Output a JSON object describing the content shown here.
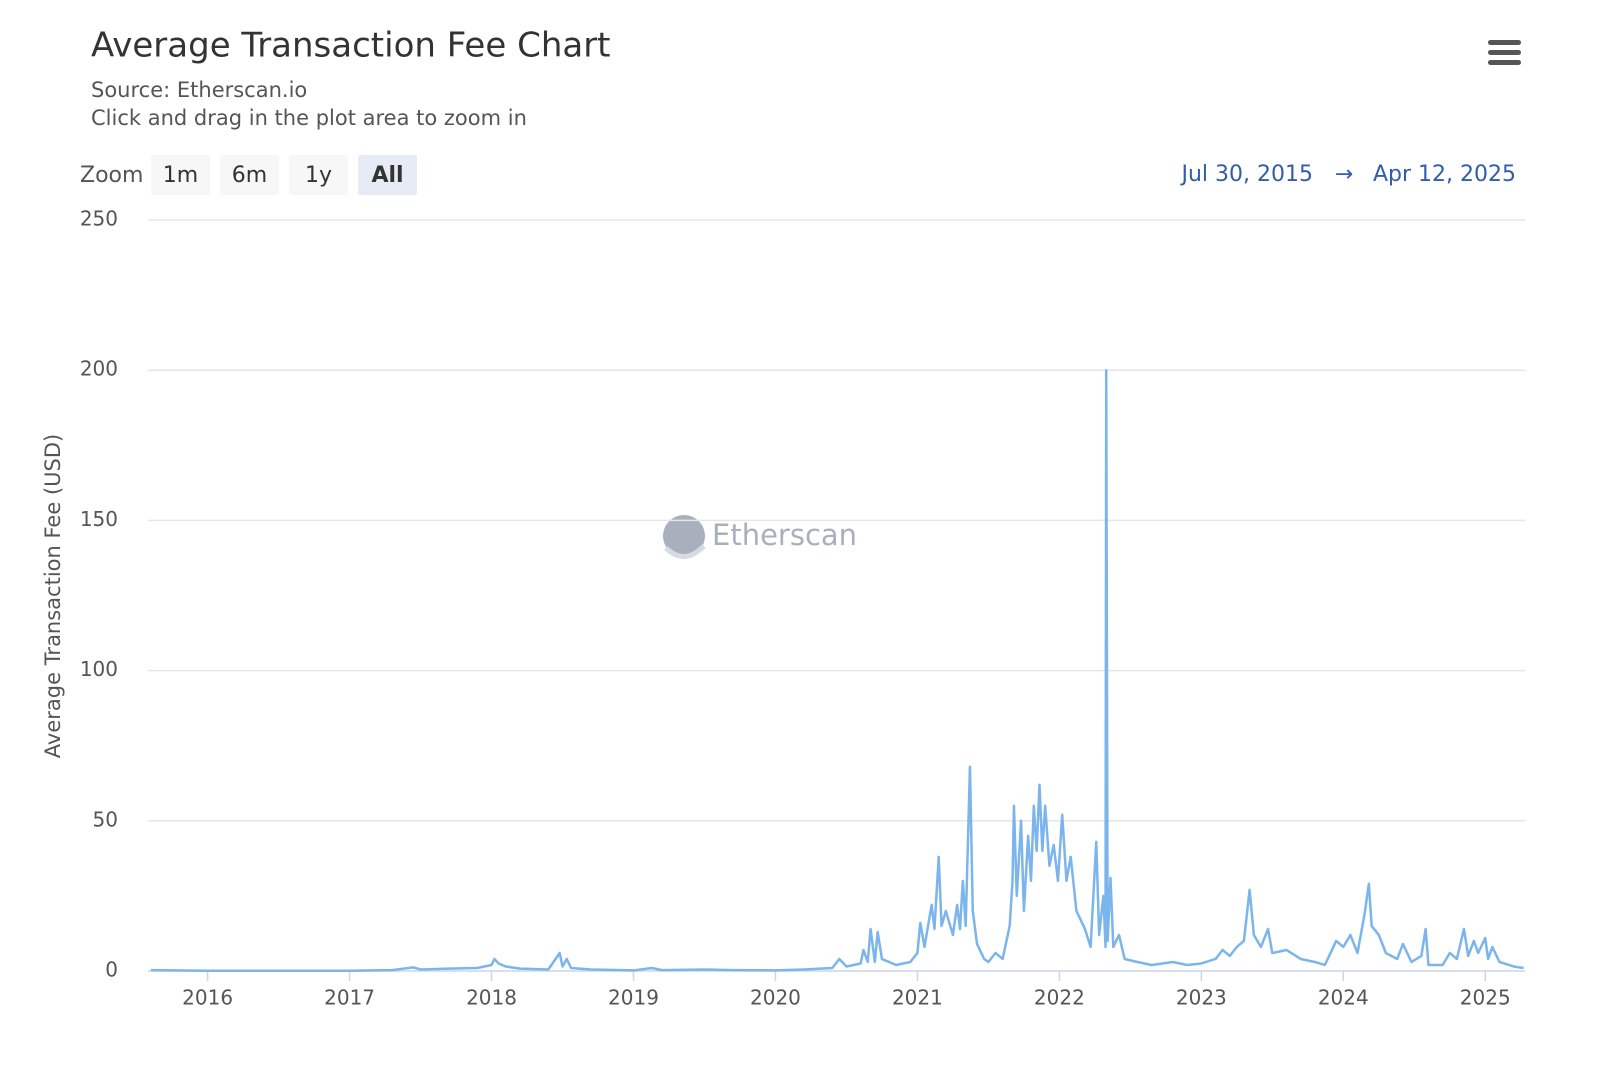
{
  "chart_data": {
    "type": "line",
    "title": "Average Transaction Fee Chart",
    "subtitle": [
      "Source: Etherscan.io",
      "Click and drag in the plot area to zoom in"
    ],
    "ylabel": "Average Transaction Fee (USD)",
    "watermark": "Etherscan",
    "range_selector": {
      "zoom_label": "Zoom",
      "buttons": [
        "1m",
        "6m",
        "1y",
        "All"
      ],
      "selected": 3,
      "from": "Jul 30, 2015",
      "arrow": "→",
      "to": "Apr 12, 2025"
    },
    "color": "#7cb5ec",
    "grid": true,
    "xlim": [
      2015.58,
      2025.28
    ],
    "xticks": [
      2016,
      2017,
      2018,
      2019,
      2020,
      2021,
      2022,
      2023,
      2024,
      2025
    ],
    "ylim": [
      0,
      250
    ],
    "yticks": [
      0,
      50,
      100,
      150,
      200,
      250
    ],
    "x": [
      2015.6,
      2016.0,
      2016.5,
      2017.0,
      2017.3,
      2017.45,
      2017.5,
      2017.7,
      2017.9,
      2018.0,
      2018.02,
      2018.05,
      2018.1,
      2018.2,
      2018.4,
      2018.48,
      2018.5,
      2018.53,
      2018.56,
      2018.7,
      2019.0,
      2019.13,
      2019.2,
      2019.5,
      2019.7,
      2020.0,
      2020.2,
      2020.4,
      2020.45,
      2020.5,
      2020.6,
      2020.62,
      2020.65,
      2020.67,
      2020.7,
      2020.72,
      2020.75,
      2020.85,
      2020.95,
      2021.0,
      2021.02,
      2021.05,
      2021.1,
      2021.12,
      2021.15,
      2021.17,
      2021.2,
      2021.25,
      2021.28,
      2021.3,
      2021.32,
      2021.34,
      2021.37,
      2021.39,
      2021.42,
      2021.47,
      2021.5,
      2021.55,
      2021.6,
      2021.65,
      2021.67,
      2021.68,
      2021.7,
      2021.73,
      2021.75,
      2021.78,
      2021.8,
      2021.82,
      2021.84,
      2021.86,
      2021.88,
      2021.9,
      2021.93,
      2021.96,
      2021.99,
      2022.02,
      2022.05,
      2022.08,
      2022.12,
      2022.18,
      2022.22,
      2022.26,
      2022.28,
      2022.31,
      2022.325,
      2022.33,
      2022.34,
      2022.36,
      2022.38,
      2022.42,
      2022.46,
      2022.55,
      2022.65,
      2022.8,
      2022.9,
      2023.0,
      2023.1,
      2023.15,
      2023.2,
      2023.25,
      2023.3,
      2023.34,
      2023.37,
      2023.42,
      2023.47,
      2023.5,
      2023.6,
      2023.7,
      2023.8,
      2023.87,
      2023.9,
      2023.95,
      2024.0,
      2024.05,
      2024.1,
      2024.15,
      2024.18,
      2024.2,
      2024.25,
      2024.3,
      2024.38,
      2024.42,
      2024.48,
      2024.55,
      2024.58,
      2024.6,
      2024.7,
      2024.75,
      2024.8,
      2024.85,
      2024.88,
      2024.92,
      2024.95,
      2025.0,
      2025.02,
      2025.05,
      2025.1,
      2025.2,
      2025.27
    ],
    "values": [
      0.3,
      0.1,
      0.1,
      0.1,
      0.3,
      1.2,
      0.5,
      0.8,
      1,
      2,
      4,
      2.5,
      1.5,
      0.8,
      0.5,
      6,
      1.5,
      4,
      1,
      0.5,
      0.2,
      1,
      0.3,
      0.5,
      0.3,
      0.2,
      0.5,
      1,
      4,
      1.5,
      2.5,
      7,
      3,
      14,
      3,
      13,
      4,
      2,
      3,
      6,
      16,
      8,
      22,
      14,
      38,
      15,
      20,
      12,
      22,
      14,
      30,
      15,
      68,
      20,
      9,
      4,
      3,
      6,
      4,
      15,
      30,
      55,
      25,
      50,
      20,
      45,
      30,
      55,
      40,
      62,
      40,
      55,
      35,
      42,
      30,
      52,
      30,
      38,
      20,
      14,
      8,
      43,
      12,
      25,
      8,
      200,
      10,
      31,
      8,
      12,
      4,
      3,
      2,
      3,
      2,
      2.5,
      4,
      7,
      5,
      8,
      10,
      27,
      12,
      8,
      14,
      6,
      7,
      4,
      3,
      2,
      5,
      10,
      8,
      12,
      6,
      19,
      29,
      15,
      12,
      6,
      4,
      9,
      3,
      5,
      14,
      2,
      2,
      6,
      4,
      14,
      5,
      10,
      6,
      11,
      4,
      8,
      3,
      1.5,
      1
    ]
  }
}
